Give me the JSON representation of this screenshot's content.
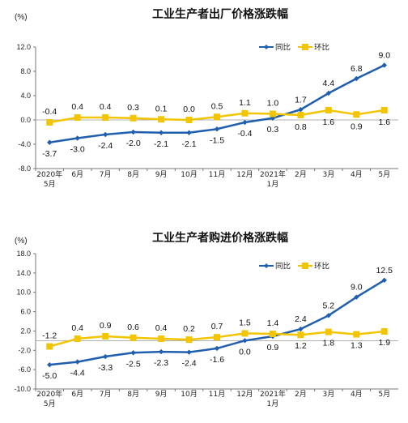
{
  "chart_data": [
    {
      "type": "line",
      "title": "工业生产者出厂价格涨跌幅",
      "unit_label": "(%)",
      "y_ticks": [
        "12.0",
        "8.0",
        "4.0",
        "0.0",
        "-4.0",
        "-8.0"
      ],
      "ylim": [
        -8,
        12
      ],
      "categories": [
        [
          "2020年",
          "5月"
        ],
        [
          "6月"
        ],
        [
          "7月"
        ],
        [
          "8月"
        ],
        [
          "9月"
        ],
        [
          "10月"
        ],
        [
          "11月"
        ],
        [
          "12月"
        ],
        [
          "2021年",
          "1月"
        ],
        [
          "2月"
        ],
        [
          "3月"
        ],
        [
          "4月"
        ],
        [
          "5月"
        ]
      ],
      "series": [
        {
          "name": "同比",
          "color": "#1f5fae",
          "values": [
            -3.7,
            -3.0,
            -2.4,
            -2.0,
            -2.1,
            -2.1,
            -1.5,
            -0.4,
            0.3,
            1.7,
            4.4,
            6.8,
            9.0
          ],
          "labels": [
            "-3.7",
            "-3.0",
            "-2.4",
            "-2.0",
            "-2.1",
            "-2.1",
            "-1.5",
            "-0.4",
            "0.3",
            "1.7",
            "4.4",
            "6.8",
            "9.0"
          ]
        },
        {
          "name": "环比",
          "color": "#f2c500",
          "values": [
            -0.4,
            0.4,
            0.4,
            0.3,
            0.1,
            0.0,
            0.5,
            1.1,
            1.0,
            0.8,
            1.6,
            0.9,
            1.6
          ],
          "labels": [
            "-0.4",
            "0.4",
            "0.4",
            "0.3",
            "0.1",
            "0.0",
            "0.5",
            "1.1",
            "1.0",
            "0.8",
            "1.6",
            "0.9",
            "1.6"
          ]
        }
      ],
      "grid": false,
      "legend": "top-right"
    },
    {
      "type": "line",
      "title": "工业生产者购进价格涨跌幅",
      "unit_label": "(%)",
      "y_ticks": [
        "18.0",
        "14.0",
        "10.0",
        "6.0",
        "2.0",
        "-2.0",
        "-6.0",
        "-10.0"
      ],
      "ylim": [
        -10,
        18
      ],
      "categories": [
        [
          "2020年",
          "5月"
        ],
        [
          "6月"
        ],
        [
          "7月"
        ],
        [
          "8月"
        ],
        [
          "9月"
        ],
        [
          "10月"
        ],
        [
          "11月"
        ],
        [
          "12月"
        ],
        [
          "2021年",
          "1月"
        ],
        [
          "2月"
        ],
        [
          "3月"
        ],
        [
          "4月"
        ],
        [
          "5月"
        ]
      ],
      "series": [
        {
          "name": "同比",
          "color": "#1f5fae",
          "values": [
            -5.0,
            -4.4,
            -3.3,
            -2.5,
            -2.3,
            -2.4,
            -1.6,
            0.0,
            0.9,
            2.4,
            5.2,
            9.0,
            12.5
          ],
          "labels": [
            "-5.0",
            "-4.4",
            "-3.3",
            "-2.5",
            "-2.3",
            "-2.4",
            "-1.6",
            "0.0",
            "0.9",
            "2.4",
            "5.2",
            "9.0",
            "12.5"
          ]
        },
        {
          "name": "环比",
          "color": "#f2c500",
          "values": [
            -1.2,
            0.4,
            0.9,
            0.6,
            0.4,
            0.2,
            0.7,
            1.5,
            1.4,
            1.2,
            1.8,
            1.3,
            1.9
          ],
          "labels": [
            "-1.2",
            "0.4",
            "0.9",
            "0.6",
            "0.4",
            "0.2",
            "0.7",
            "1.5",
            "1.4",
            "1.2",
            "1.8",
            "1.3",
            "1.9"
          ]
        }
      ],
      "grid": false,
      "legend": "top-right"
    }
  ]
}
